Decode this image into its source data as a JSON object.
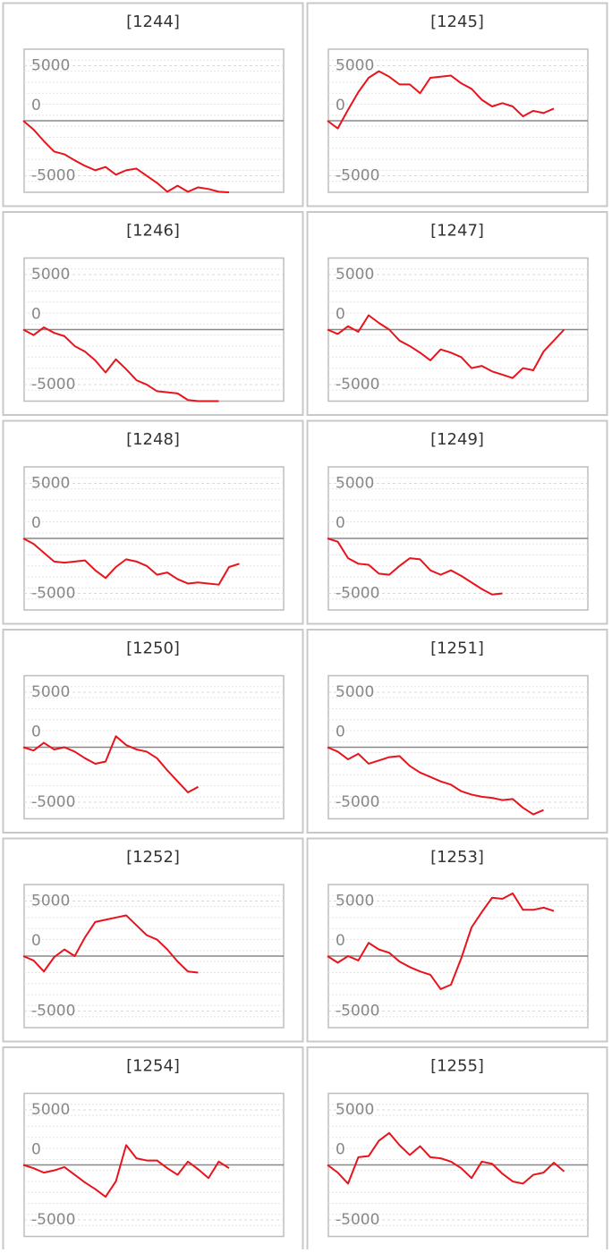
{
  "chart_data": [
    {
      "type": "line",
      "title": "[1244]",
      "color": "#e8141d",
      "grid": true,
      "ylim": [
        -6500,
        6500
      ],
      "yticks": [
        -5000,
        0,
        5000
      ],
      "values": [
        0,
        -800,
        -1850,
        -2800,
        -3050,
        -3600,
        -4100,
        -4500,
        -4200,
        -4900,
        -4500,
        -4350,
        -5000,
        -5650,
        -6450,
        -5900,
        -6450,
        -6050,
        -6200,
        -6450,
        -6500
      ]
    },
    {
      "type": "line",
      "title": "[1245]",
      "color": "#e8141d",
      "grid": true,
      "ylim": [
        -6500,
        6500
      ],
      "yticks": [
        -5000,
        0,
        5000
      ],
      "values": [
        0,
        -700,
        1000,
        2600,
        3900,
        4500,
        4000,
        3300,
        3300,
        2500,
        3900,
        4000,
        4100,
        3400,
        2900,
        1900,
        1300,
        1600,
        1300,
        400,
        900,
        700,
        1100
      ]
    },
    {
      "type": "line",
      "title": "[1246]",
      "color": "#e8141d",
      "grid": true,
      "ylim": [
        -6500,
        6500
      ],
      "yticks": [
        -5000,
        0,
        5000
      ],
      "values": [
        0,
        -500,
        200,
        -300,
        -600,
        -1500,
        -2000,
        -2800,
        -3900,
        -2700,
        -3600,
        -4600,
        -5000,
        -5600,
        -5700,
        -5800,
        -6400,
        -6500,
        -6500,
        -6500
      ]
    },
    {
      "type": "line",
      "title": "[1247]",
      "color": "#e8141d",
      "grid": true,
      "ylim": [
        -6500,
        6500
      ],
      "yticks": [
        -5000,
        0,
        5000
      ],
      "values": [
        0,
        -400,
        300,
        -200,
        1300,
        600,
        0,
        -1000,
        -1500,
        -2100,
        -2800,
        -1800,
        -2100,
        -2500,
        -3500,
        -3300,
        -3800,
        -4100,
        -4400,
        -3500,
        -3700,
        -2000,
        -1000,
        0
      ]
    },
    {
      "type": "line",
      "title": "[1248]",
      "color": "#e8141d",
      "grid": true,
      "ylim": [
        -6500,
        6500
      ],
      "yticks": [
        -5000,
        0,
        5000
      ],
      "values": [
        0,
        -500,
        -1300,
        -2100,
        -2200,
        -2100,
        -2000,
        -2900,
        -3600,
        -2600,
        -1900,
        -2100,
        -2500,
        -3300,
        -3100,
        -3700,
        -4100,
        -4000,
        -4100,
        -4200,
        -2600,
        -2300
      ]
    },
    {
      "type": "line",
      "title": "[1249]",
      "color": "#e8141d",
      "grid": true,
      "ylim": [
        -6500,
        6500
      ],
      "yticks": [
        -5000,
        0,
        5000
      ],
      "values": [
        0,
        -300,
        -1800,
        -2300,
        -2400,
        -3200,
        -3300,
        -2500,
        -1800,
        -1900,
        -2900,
        -3300,
        -2900,
        -3400,
        -4000,
        -4600,
        -5100,
        -5000
      ]
    },
    {
      "type": "line",
      "title": "[1250]",
      "color": "#e8141d",
      "grid": true,
      "ylim": [
        -6500,
        6500
      ],
      "yticks": [
        -5000,
        0,
        5000
      ],
      "values": [
        0,
        -300,
        400,
        -200,
        0,
        -400,
        -1000,
        -1500,
        -1300,
        1000,
        200,
        -200,
        -400,
        -1000,
        -2100,
        -3100,
        -4100,
        -3600
      ]
    },
    {
      "type": "line",
      "title": "[1251]",
      "color": "#e8141d",
      "grid": true,
      "ylim": [
        -6500,
        6500
      ],
      "yticks": [
        -5000,
        0,
        5000
      ],
      "values": [
        0,
        -400,
        -1100,
        -600,
        -1500,
        -1200,
        -900,
        -800,
        -1700,
        -2300,
        -2700,
        -3100,
        -3400,
        -4000,
        -4300,
        -4500,
        -4600,
        -4800,
        -4700,
        -5500,
        -6100,
        -5700
      ]
    },
    {
      "type": "line",
      "title": "[1252]",
      "color": "#e8141d",
      "grid": true,
      "ylim": [
        -6500,
        6500
      ],
      "yticks": [
        -5000,
        0,
        5000
      ],
      "values": [
        0,
        -400,
        -1400,
        -100,
        600,
        0,
        1700,
        3100,
        3300,
        3500,
        3700,
        2800,
        1900,
        1500,
        600,
        -500,
        -1400,
        -1500
      ]
    },
    {
      "type": "line",
      "title": "[1253]",
      "color": "#e8141d",
      "grid": true,
      "ylim": [
        -6500,
        6500
      ],
      "yticks": [
        -5000,
        0,
        5000
      ],
      "values": [
        0,
        -600,
        0,
        -400,
        1200,
        600,
        300,
        -500,
        -1000,
        -1400,
        -1700,
        -3000,
        -2600,
        -200,
        2600,
        4000,
        5300,
        5200,
        5700,
        4200,
        4200,
        4400,
        4100
      ]
    },
    {
      "type": "line",
      "title": "[1254]",
      "color": "#e8141d",
      "grid": true,
      "ylim": [
        -6500,
        6500
      ],
      "yticks": [
        -5000,
        0,
        5000
      ],
      "values": [
        0,
        -300,
        -700,
        -500,
        -200,
        -900,
        -1600,
        -2200,
        -2900,
        -1500,
        1800,
        600,
        400,
        400,
        -300,
        -900,
        300,
        -400,
        -1200,
        300,
        -300
      ]
    },
    {
      "type": "line",
      "title": "[1255]",
      "color": "#e8141d",
      "grid": true,
      "ylim": [
        -6500,
        6500
      ],
      "yticks": [
        -5000,
        0,
        5000
      ],
      "values": [
        0,
        -700,
        -1700,
        700,
        800,
        2200,
        2900,
        1800,
        900,
        1700,
        700,
        600,
        300,
        -300,
        -1200,
        300,
        100,
        -800,
        -1500,
        -1700,
        -900,
        -700,
        200,
        -600
      ]
    }
  ]
}
